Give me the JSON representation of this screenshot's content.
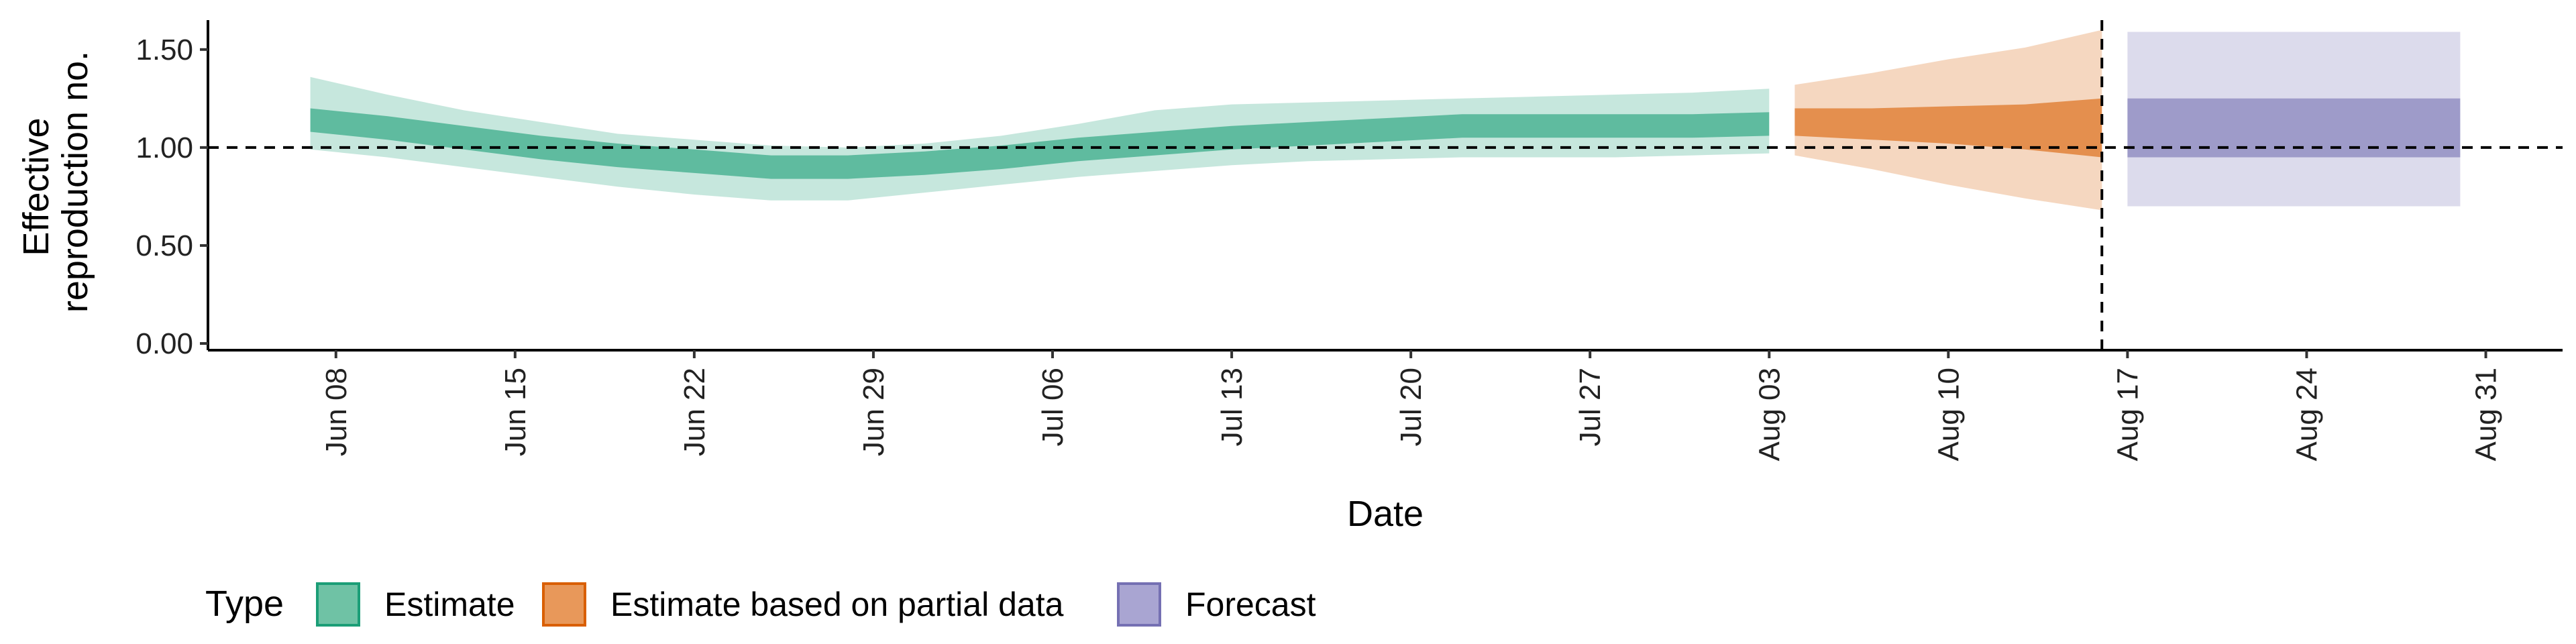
{
  "chart_data": {
    "type": "area",
    "xlabel": "Date",
    "ylabel_lines": [
      "Effective",
      "reproduction no."
    ],
    "x_ticks": [
      "Jun 08",
      "Jun 15",
      "Jun 22",
      "Jun 29",
      "Jul 06",
      "Jul 13",
      "Jul 20",
      "Jul 27",
      "Aug 03",
      "Aug 10",
      "Aug 17",
      "Aug 24",
      "Aug 31"
    ],
    "x_range": [
      "2020-06-03",
      "2020-09-03"
    ],
    "y_ticks": [
      "0.00",
      "0.50",
      "1.00",
      "1.50"
    ],
    "ylim": [
      0,
      1.65
    ],
    "reference_line": {
      "y": 1.0,
      "style": "dashed"
    },
    "vertical_line": {
      "x": "2020-08-16",
      "style": "dashed"
    },
    "grid": false,
    "legend": {
      "title": "Type",
      "position": "bottom-left",
      "entries": [
        {
          "label": "Estimate",
          "fill": "#6fc2a5",
          "border": "#1b9e77"
        },
        {
          "label": "Estimate based on partial data",
          "fill": "#e8985a",
          "border": "#d95f02"
        },
        {
          "label": "Forecast",
          "fill": "#a9a5d2",
          "border": "#7570b3"
        }
      ]
    },
    "series": [
      {
        "name": "Estimate",
        "color": "#1b9e77",
        "inner_opacity": 0.6,
        "outer_opacity": 0.25,
        "points": [
          {
            "x": "2020-06-07",
            "median": 1.14,
            "lower50": 1.08,
            "upper50": 1.2,
            "lower90": 0.99,
            "upper90": 1.36
          },
          {
            "x": "2020-06-10",
            "median": 1.1,
            "lower50": 1.04,
            "upper50": 1.16,
            "lower90": 0.95,
            "upper90": 1.27
          },
          {
            "x": "2020-06-13",
            "median": 1.05,
            "lower50": 0.99,
            "upper50": 1.11,
            "lower90": 0.9,
            "upper90": 1.19
          },
          {
            "x": "2020-06-16",
            "median": 1.0,
            "lower50": 0.94,
            "upper50": 1.06,
            "lower90": 0.85,
            "upper90": 1.13
          },
          {
            "x": "2020-06-19",
            "median": 0.96,
            "lower50": 0.9,
            "upper50": 1.02,
            "lower90": 0.8,
            "upper90": 1.07
          },
          {
            "x": "2020-06-22",
            "median": 0.93,
            "lower50": 0.87,
            "upper50": 0.99,
            "lower90": 0.76,
            "upper90": 1.04
          },
          {
            "x": "2020-06-25",
            "median": 0.9,
            "lower50": 0.84,
            "upper50": 0.96,
            "lower90": 0.73,
            "upper90": 1.01
          },
          {
            "x": "2020-06-28",
            "median": 0.9,
            "lower50": 0.84,
            "upper50": 0.96,
            "lower90": 0.73,
            "upper90": 1.0
          },
          {
            "x": "2020-07-01",
            "median": 0.92,
            "lower50": 0.86,
            "upper50": 0.98,
            "lower90": 0.77,
            "upper90": 1.02
          },
          {
            "x": "2020-07-04",
            "median": 0.95,
            "lower50": 0.89,
            "upper50": 1.01,
            "lower90": 0.81,
            "upper90": 1.06
          },
          {
            "x": "2020-07-07",
            "median": 0.99,
            "lower50": 0.93,
            "upper50": 1.05,
            "lower90": 0.85,
            "upper90": 1.12
          },
          {
            "x": "2020-07-10",
            "median": 1.02,
            "lower50": 0.96,
            "upper50": 1.08,
            "lower90": 0.88,
            "upper90": 1.19
          },
          {
            "x": "2020-07-13",
            "median": 1.05,
            "lower50": 0.99,
            "upper50": 1.11,
            "lower90": 0.91,
            "upper90": 1.22
          },
          {
            "x": "2020-07-16",
            "median": 1.07,
            "lower50": 1.01,
            "upper50": 1.13,
            "lower90": 0.93,
            "upper90": 1.23
          },
          {
            "x": "2020-07-19",
            "median": 1.09,
            "lower50": 1.03,
            "upper50": 1.15,
            "lower90": 0.94,
            "upper90": 1.24
          },
          {
            "x": "2020-07-22",
            "median": 1.11,
            "lower50": 1.05,
            "upper50": 1.17,
            "lower90": 0.95,
            "upper90": 1.25
          },
          {
            "x": "2020-07-25",
            "median": 1.11,
            "lower50": 1.05,
            "upper50": 1.17,
            "lower90": 0.95,
            "upper90": 1.26
          },
          {
            "x": "2020-07-28",
            "median": 1.11,
            "lower50": 1.05,
            "upper50": 1.17,
            "lower90": 0.95,
            "upper90": 1.27
          },
          {
            "x": "2020-07-31",
            "median": 1.11,
            "lower50": 1.05,
            "upper50": 1.17,
            "lower90": 0.96,
            "upper90": 1.28
          },
          {
            "x": "2020-08-03",
            "median": 1.12,
            "lower50": 1.06,
            "upper50": 1.18,
            "lower90": 0.97,
            "upper90": 1.3
          }
        ]
      },
      {
        "name": "Estimate based on partial data",
        "color": "#d95f02",
        "inner_opacity": 0.6,
        "outer_opacity": 0.25,
        "points": [
          {
            "x": "2020-08-04",
            "median": 1.13,
            "lower50": 1.06,
            "upper50": 1.2,
            "lower90": 0.96,
            "upper90": 1.32
          },
          {
            "x": "2020-08-07",
            "median": 1.12,
            "lower50": 1.04,
            "upper50": 1.2,
            "lower90": 0.89,
            "upper90": 1.38
          },
          {
            "x": "2020-08-10",
            "median": 1.12,
            "lower50": 1.02,
            "upper50": 1.21,
            "lower90": 0.81,
            "upper90": 1.45
          },
          {
            "x": "2020-08-13",
            "median": 1.11,
            "lower50": 0.99,
            "upper50": 1.22,
            "lower90": 0.74,
            "upper90": 1.51
          },
          {
            "x": "2020-08-16",
            "median": 1.1,
            "lower50": 0.95,
            "upper50": 1.25,
            "lower90": 0.68,
            "upper90": 1.6
          }
        ]
      },
      {
        "name": "Forecast",
        "color": "#7570b3",
        "inner_opacity": 0.6,
        "outer_opacity": 0.25,
        "points": [
          {
            "x": "2020-08-17",
            "median": 1.1,
            "lower50": 0.95,
            "upper50": 1.25,
            "lower90": 0.7,
            "upper90": 1.59
          },
          {
            "x": "2020-08-30",
            "median": 1.1,
            "lower50": 0.95,
            "upper50": 1.25,
            "lower90": 0.7,
            "upper90": 1.59
          }
        ]
      }
    ]
  }
}
